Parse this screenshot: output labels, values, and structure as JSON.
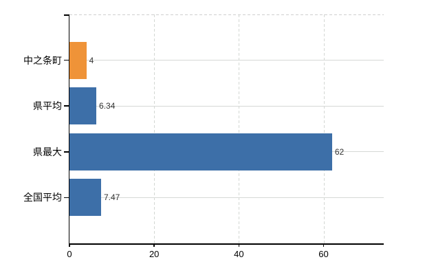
{
  "chart_data": {
    "type": "bar",
    "orientation": "horizontal",
    "title": "",
    "xlabel": "",
    "ylabel": "",
    "categories": [
      "中之条町",
      "県平均",
      "県最大",
      "全国平均"
    ],
    "values": [
      4,
      6.34,
      62,
      7.47
    ],
    "value_labels": [
      "4",
      "6.34",
      "62",
      "7.47"
    ],
    "bar_colors": [
      "#ef9338",
      "#3d6fa8",
      "#3d6fa8",
      "#3d6fa8"
    ],
    "x_ticks": [
      0,
      20,
      40,
      60
    ],
    "x_tick_labels": [
      "0",
      "20",
      "40",
      "60"
    ],
    "xlim": [
      0,
      74.2
    ],
    "grid": {
      "vertical_style": "dashed",
      "horizontal_style": "solid",
      "color": "#d5d8d5"
    },
    "legend": "none",
    "colors": {
      "background": "#ffffff",
      "axis": "#000000",
      "value_label": "#333333",
      "tick_label": "#000000",
      "orange_bar": "#ef9338",
      "blue_bar": "#3d6fa8"
    }
  }
}
